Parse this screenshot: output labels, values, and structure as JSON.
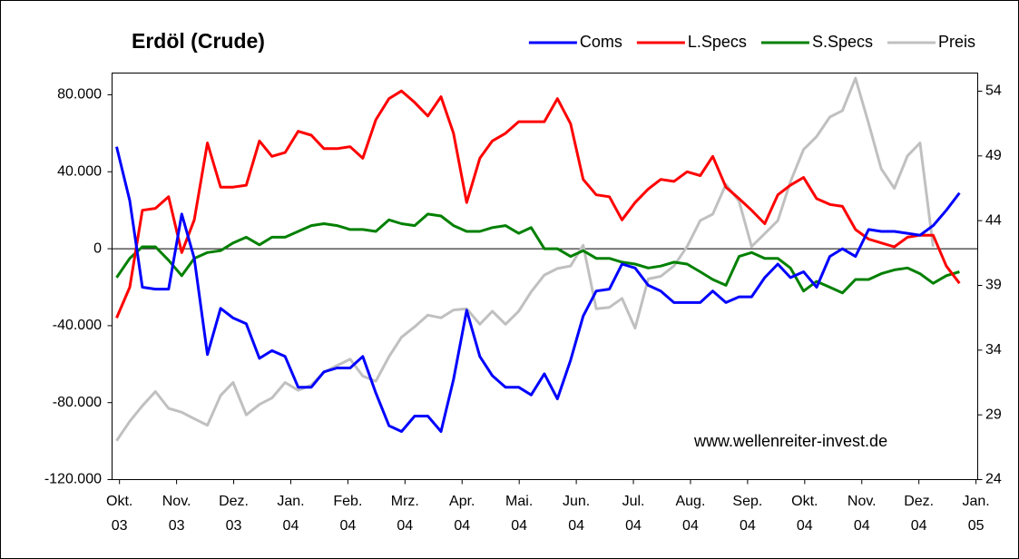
{
  "chart_data": {
    "type": "line",
    "title": "Erdöl (Crude)",
    "annotation": "www.wellenreiter-invest.de",
    "legend": "top-right",
    "zero_line": true,
    "x": [
      -0.05,
      0.18,
      0.4,
      0.63,
      0.86,
      1.09,
      1.31,
      1.54,
      1.77,
      1.99,
      2.22,
      2.45,
      2.67,
      2.9,
      3.13,
      3.36,
      3.58,
      3.81,
      4.04,
      4.26,
      4.49,
      4.72,
      4.94,
      5.17,
      5.4,
      5.63,
      5.85,
      6.08,
      6.31,
      6.53,
      6.76,
      6.99,
      7.21,
      7.44,
      7.67,
      7.9,
      8.12,
      8.35,
      8.58,
      8.8,
      9.03,
      9.26,
      9.48,
      9.71,
      9.94,
      10.17,
      10.39,
      10.62,
      10.85,
      11.07,
      11.3,
      11.53,
      11.75,
      11.98,
      12.21,
      12.44,
      12.66,
      12.89,
      13.12,
      13.34,
      13.57,
      13.8,
      14.02,
      14.25,
      14.48,
      14.71
    ],
    "xlim": [
      -0.13,
      15.03
    ],
    "xticks": [
      {
        "value": 0,
        "label": "Okt.\n03"
      },
      {
        "value": 1,
        "label": "Nov.\n03"
      },
      {
        "value": 2,
        "label": "Dez.\n03"
      },
      {
        "value": 3,
        "label": "Jan.\n04"
      },
      {
        "value": 4,
        "label": "Feb.\n04"
      },
      {
        "value": 5,
        "label": "Mrz.\n04"
      },
      {
        "value": 6,
        "label": "Apr.\n04"
      },
      {
        "value": 7,
        "label": "Mai.\n04"
      },
      {
        "value": 8,
        "label": "Jun.\n04"
      },
      {
        "value": 9,
        "label": "Jul.\n04"
      },
      {
        "value": 10,
        "label": "Aug.\n04"
      },
      {
        "value": 11,
        "label": "Sep.\n04"
      },
      {
        "value": 12,
        "label": "Okt.\n04"
      },
      {
        "value": 13,
        "label": "Nov.\n04"
      },
      {
        "value": 14,
        "label": "Dez.\n04"
      },
      {
        "value": 15,
        "label": "Jan.\n05"
      }
    ],
    "ylim": [
      -120000,
      91300
    ],
    "yticks": [
      {
        "value": 80000,
        "label": "80.000"
      },
      {
        "value": 40000,
        "label": "40.000"
      },
      0,
      {
        "value": -40000,
        "label": "-40.000"
      },
      {
        "value": -80000,
        "label": "-80.000"
      },
      {
        "value": -120000,
        "label": "-120.000"
      }
    ],
    "y2lim": [
      24,
      55.4
    ],
    "y2ticks": [
      54,
      49,
      44,
      39,
      34,
      29,
      24
    ],
    "series": [
      {
        "name": "Coms",
        "color": "#0000ff",
        "values": [
          53000,
          25000,
          -20000,
          -21000,
          -21000,
          18000,
          -5000,
          -55000,
          -31000,
          -36000,
          -39000,
          -57000,
          -53000,
          -56000,
          -72000,
          -72000,
          -64000,
          -62000,
          -62000,
          -56000,
          -75000,
          -92000,
          -95000,
          -87000,
          -87000,
          -95000,
          -68000,
          -32000,
          -56000,
          -66000,
          -72000,
          -72000,
          -76000,
          -65000,
          -78000,
          -58000,
          -35000,
          -22000,
          -21000,
          -8000,
          -10000,
          -19000,
          -22000,
          -28000,
          -28000,
          -28000,
          -22000,
          -28000,
          -25000,
          -25000,
          -15000,
          -8000,
          -15000,
          -12000,
          -20000,
          -4000,
          0,
          -4000,
          10000,
          9000,
          9000,
          8000,
          7000,
          12000,
          20000,
          29000
        ]
      },
      {
        "name": "L.Specs",
        "color": "#ff0000",
        "values": [
          -36000,
          -20000,
          20000,
          21000,
          27000,
          -2000,
          15000,
          55000,
          32000,
          32000,
          33000,
          56000,
          48000,
          50000,
          61000,
          59000,
          52000,
          52000,
          53000,
          47000,
          67000,
          78000,
          82000,
          76000,
          69000,
          79000,
          60000,
          24000,
          47000,
          56000,
          60000,
          66000,
          66000,
          66000,
          78000,
          65000,
          36000,
          28000,
          27000,
          15000,
          24000,
          31000,
          36000,
          35000,
          40000,
          38000,
          48000,
          32000,
          26000,
          20000,
          13000,
          28000,
          33000,
          37000,
          26000,
          23000,
          22000,
          10000,
          5000,
          3000,
          1000,
          6000,
          7000,
          7000,
          -9000,
          -18000
        ]
      },
      {
        "name": "S.Specs",
        "color": "#008000",
        "values": [
          -15000,
          -5000,
          1000,
          1000,
          -6000,
          -14000,
          -5000,
          -2000,
          -1000,
          3000,
          6000,
          2000,
          6000,
          6000,
          9000,
          12000,
          13000,
          12000,
          10000,
          10000,
          9000,
          15000,
          13000,
          12000,
          18000,
          17000,
          12000,
          9000,
          9000,
          11000,
          12000,
          8000,
          11000,
          0,
          0,
          -4000,
          -1000,
          -5000,
          -5000,
          -7000,
          -8000,
          -10000,
          -9000,
          -7000,
          -8000,
          -12000,
          -16000,
          -19000,
          -4000,
          -2000,
          -5000,
          -5000,
          -10000,
          -22000,
          -17000,
          -20000,
          -23000,
          -16000,
          -16000,
          -13000,
          -11000,
          -10000,
          -13000,
          -18000,
          -14000,
          -12000
        ]
      },
      {
        "name": "Preis",
        "color": "#c0c0c0",
        "axis": "y2",
        "values": [
          27,
          28.5,
          29.7,
          30.8,
          29.5,
          29.2,
          28.7,
          28.2,
          30.5,
          31.5,
          29,
          29.8,
          30.3,
          31.5,
          30.9,
          31.3,
          32.3,
          32.8,
          33.3,
          32,
          31.6,
          33.5,
          35,
          35.8,
          36.7,
          36.5,
          37.1,
          37.2,
          36,
          37,
          36,
          37,
          38.5,
          39.8,
          40.3,
          40.5,
          42.1,
          37.2,
          37.3,
          38,
          35.7,
          39.5,
          39.7,
          40.5,
          42,
          44,
          44.5,
          46.8,
          45.5,
          42,
          43,
          44,
          47,
          49.5,
          50.5,
          52,
          52.5,
          55,
          51.5,
          48,
          46.5,
          49,
          50,
          42,
          null,
          null
        ]
      }
    ]
  }
}
